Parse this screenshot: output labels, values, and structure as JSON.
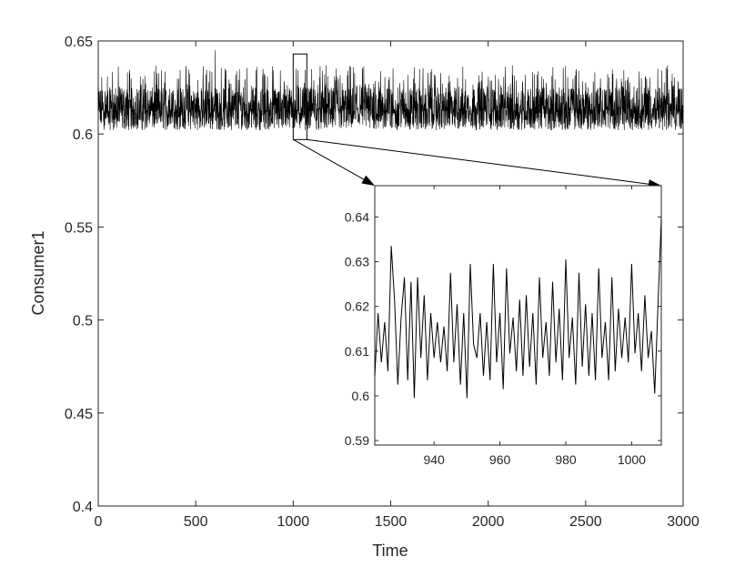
{
  "chart_data": [
    {
      "panel": "main",
      "type": "line",
      "title": "",
      "xlabel": "Time",
      "ylabel": "Consumer1",
      "xlim": [
        0,
        3000
      ],
      "ylim": [
        0.4,
        0.65
      ],
      "xticks": [
        0,
        500,
        1000,
        1500,
        2000,
        2500,
        3000
      ],
      "xtick_labels": [
        "0",
        "500",
        "1000",
        "1500",
        "2000",
        "2500",
        "3000"
      ],
      "yticks": [
        0.4,
        0.45,
        0.5,
        0.55,
        0.6,
        0.65
      ],
      "ytick_labels": [
        "0.4",
        "0.45",
        "0.5",
        "0.55",
        "0.6",
        "0.65"
      ],
      "grid": false,
      "legend": "none",
      "line_color": "#000000",
      "series_summary": {
        "x_range": [
          0,
          3000
        ],
        "mean": 0.612,
        "typical_low": 0.602,
        "typical_high": 0.625,
        "peak_max": 0.645,
        "peak_max_x": 600
      },
      "zoom_box": {
        "x": [
          1000,
          1070
        ],
        "y": [
          0.597,
          0.643
        ]
      }
    },
    {
      "panel": "inset",
      "type": "line",
      "title": "",
      "xlim": [
        922,
        1009
      ],
      "ylim": [
        0.589,
        0.647
      ],
      "xticks": [
        940,
        960,
        980,
        1000
      ],
      "xtick_labels": [
        "940",
        "960",
        "980",
        "1000"
      ],
      "yticks": [
        0.59,
        0.6,
        0.61,
        0.62,
        0.63,
        0.64
      ],
      "ytick_labels": [
        "0.59",
        "0.6",
        "0.61",
        "0.62",
        "0.63",
        "0.64"
      ],
      "grid": false,
      "legend": "none",
      "line_color": "#000000",
      "series": [
        {
          "x": [
            922,
            923,
            924,
            925,
            926,
            927,
            928,
            929,
            930,
            931,
            932,
            933,
            934,
            935,
            936,
            937,
            938,
            939,
            940,
            941,
            942,
            943,
            944,
            945,
            946,
            947,
            948,
            949,
            950,
            951,
            952,
            953,
            954,
            955,
            956,
            957,
            958,
            959,
            960,
            961,
            962,
            963,
            964,
            965,
            966,
            967,
            968,
            969,
            970,
            971,
            972,
            973,
            974,
            975,
            976,
            977,
            978,
            979,
            980,
            981,
            982,
            983,
            984,
            985,
            986,
            987,
            988,
            989,
            990,
            991,
            992,
            993,
            994,
            995,
            996,
            997,
            998,
            999,
            1000,
            1001,
            1002,
            1003,
            1004,
            1005,
            1006,
            1007,
            1008,
            1009
          ],
          "y": [
            0.6045,
            0.6185,
            0.6075,
            0.6165,
            0.6055,
            0.6335,
            0.6215,
            0.6025,
            0.6175,
            0.6265,
            0.6035,
            0.6255,
            0.5995,
            0.6265,
            0.6085,
            0.6225,
            0.6035,
            0.6185,
            0.6085,
            0.6165,
            0.6075,
            0.6155,
            0.6055,
            0.6275,
            0.6075,
            0.6205,
            0.6025,
            0.6185,
            0.5995,
            0.6295,
            0.6115,
            0.6085,
            0.6185,
            0.6045,
            0.6165,
            0.6035,
            0.6295,
            0.6075,
            0.6185,
            0.6015,
            0.6285,
            0.6095,
            0.6175,
            0.6055,
            0.6215,
            0.6045,
            0.6225,
            0.6065,
            0.6185,
            0.6025,
            0.6265,
            0.6085,
            0.6165,
            0.6045,
            0.6255,
            0.6075,
            0.6195,
            0.6035,
            0.6305,
            0.6085,
            0.6175,
            0.6025,
            0.6275,
            0.6065,
            0.6205,
            0.6045,
            0.6185,
            0.6035,
            0.6285,
            0.6085,
            0.6165,
            0.6035,
            0.6265,
            0.6055,
            0.6195,
            0.6085,
            0.6175,
            0.6075,
            0.6295,
            0.6095,
            0.6185,
            0.6055,
            0.6225,
            0.6085,
            0.6145,
            0.6005,
            0.6205,
            0.6395
          ]
        }
      ]
    }
  ]
}
